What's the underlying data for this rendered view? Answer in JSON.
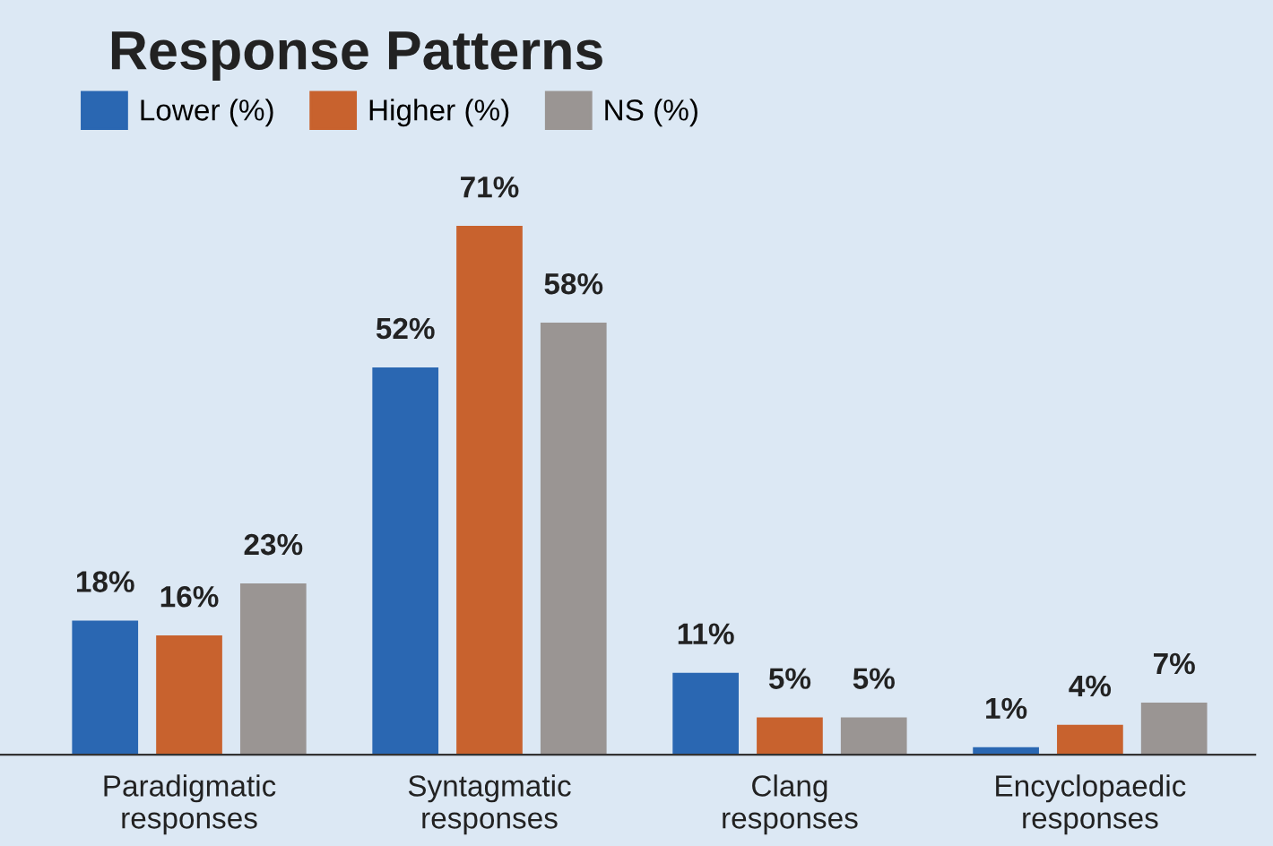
{
  "chart_data": {
    "type": "bar",
    "title": "Response Patterns",
    "categories": [
      "Paradigmatic\nresponses",
      "Syntagmatic\nresponses",
      "Clang\nresponses",
      "Encyclopaedic\nresponses"
    ],
    "series": [
      {
        "name": "Lower (%)",
        "color": "#2a67b2",
        "values": [
          18,
          52,
          11,
          1
        ],
        "value_labels": [
          "18%",
          "52%",
          "11%",
          "1%"
        ]
      },
      {
        "name": "Higher (%)",
        "color": "#c8622e",
        "values": [
          16,
          71,
          5,
          4
        ],
        "value_labels": [
          "16%",
          "71%",
          "5%",
          "4%"
        ]
      },
      {
        "name": "NS (%)",
        "color": "#9a9593",
        "values": [
          23,
          58,
          5,
          7
        ],
        "value_labels": [
          "23%",
          "58%",
          "5%",
          "7%"
        ]
      }
    ],
    "legend": "top left",
    "grid": false
  }
}
